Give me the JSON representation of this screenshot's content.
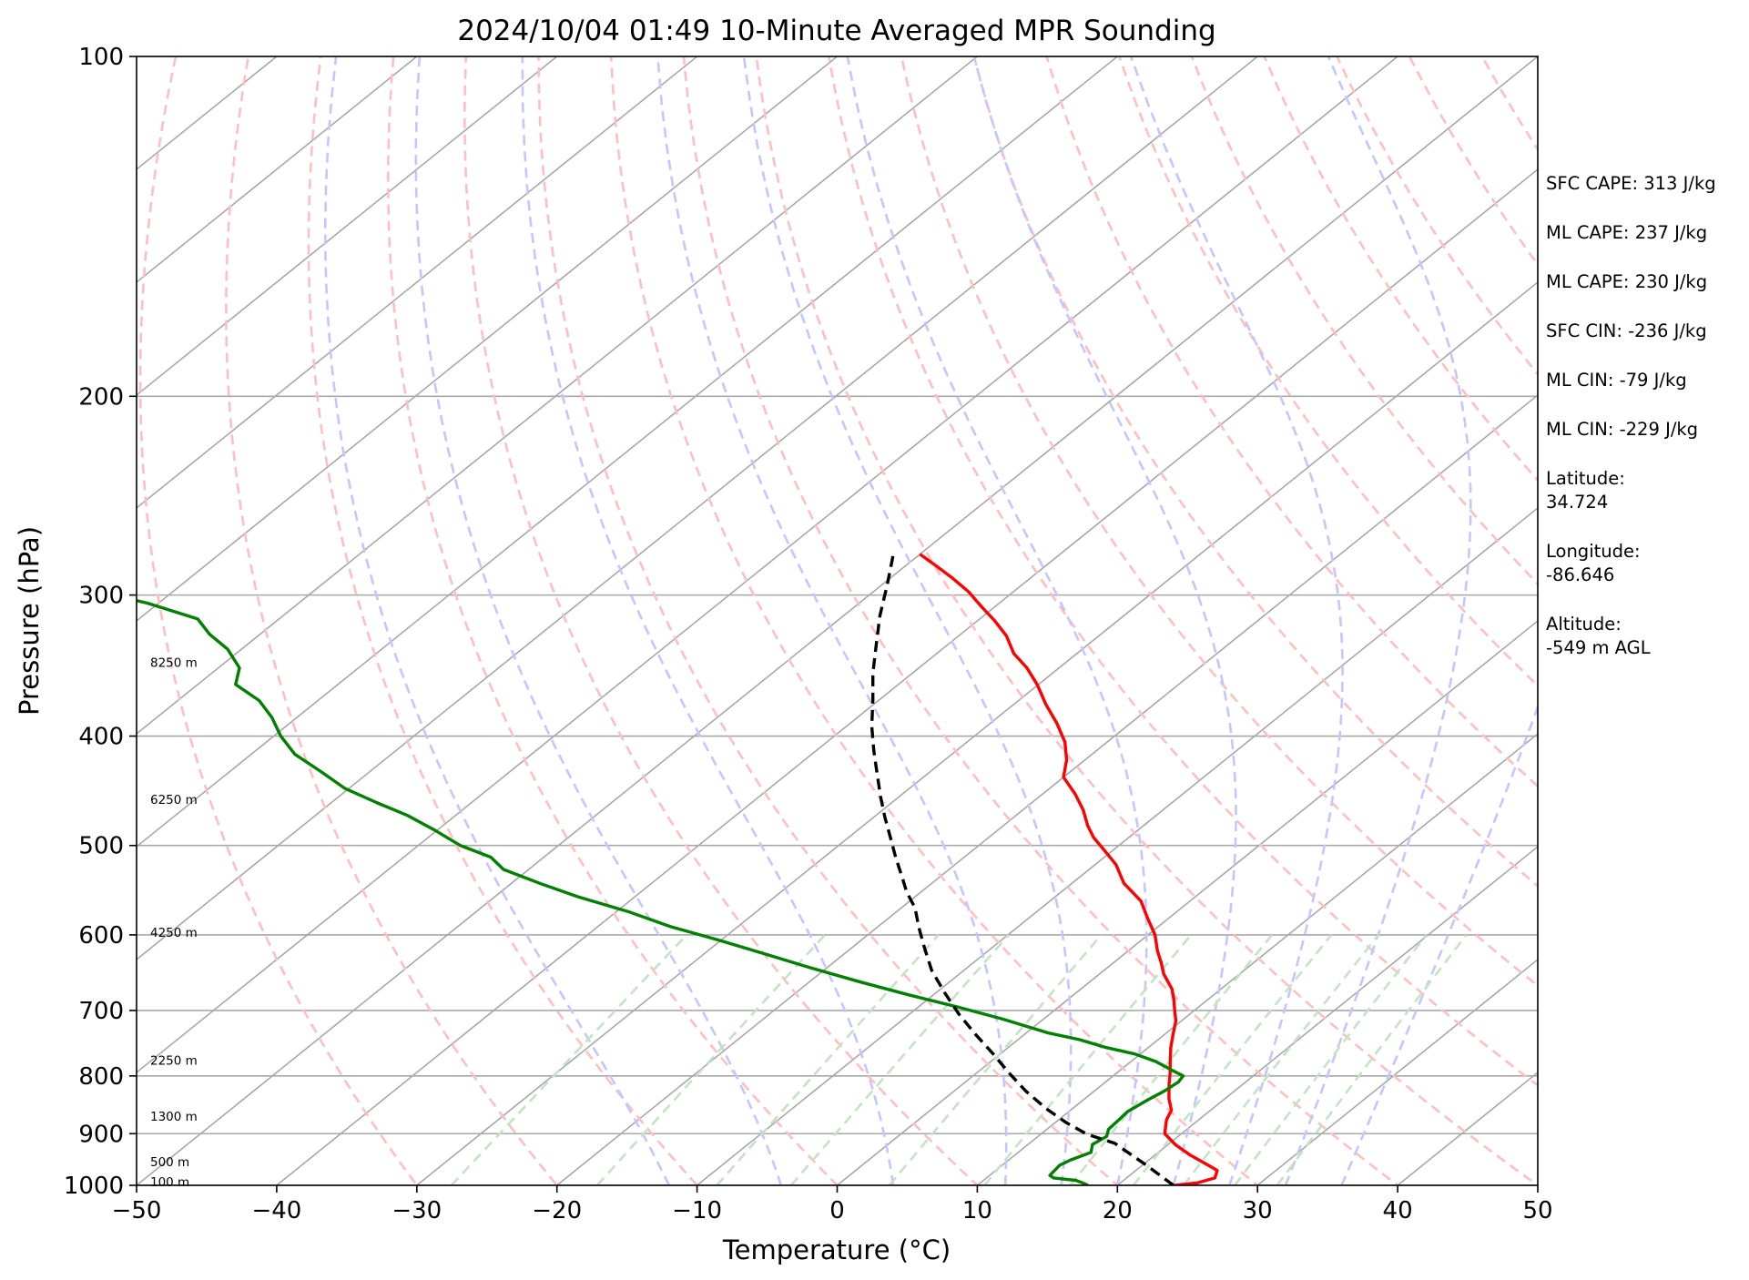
{
  "chart_data": {
    "type": "line",
    "title": "2024/10/04 01:49 10-Minute Averaged MPR Sounding",
    "xlabel": "Temperature (°C)",
    "ylabel": "Pressure (hPa)",
    "xlim": [
      -50,
      50
    ],
    "ylim": [
      1000,
      100
    ],
    "y_scale": "log",
    "x_ticks": [
      "−50",
      "−40",
      "−30",
      "−20",
      "−10",
      "0",
      "10",
      "20",
      "30",
      "40",
      "50"
    ],
    "y_ticks": [
      {
        "value": 100,
        "label": "100"
      },
      {
        "value": 200,
        "label": "200"
      },
      {
        "value": 300,
        "label": "300"
      },
      {
        "value": 400,
        "label": "400"
      },
      {
        "value": 500,
        "label": "500"
      },
      {
        "value": 600,
        "label": "600"
      },
      {
        "value": 700,
        "label": "700"
      },
      {
        "value": 800,
        "label": "800"
      },
      {
        "value": 900,
        "label": "900"
      },
      {
        "value": 1000,
        "label": "1000"
      }
    ],
    "grid": true,
    "skew": true,
    "background_lines": {
      "isotherms": "gray solid",
      "dry_adiabats": "red dashed",
      "moist_adiabats": "blue dashed",
      "mixing_ratio": "green dashed"
    },
    "colors": {
      "temperature": "#ff0000",
      "dewpoint": "#008000",
      "parcel": "#000000",
      "isotherm": "#a8a8a8",
      "dry_adiabat": "#ffbfbf",
      "moist_adiabat": "#c5c5ff",
      "mixing_ratio": "#c3e4c3"
    },
    "height_labels": [
      {
        "label": "100 m",
        "p": 993
      },
      {
        "label": "500 m",
        "p": 953
      },
      {
        "label": "1300 m",
        "p": 868
      },
      {
        "label": "2250 m",
        "p": 775
      },
      {
        "label": "4250 m",
        "p": 597
      },
      {
        "label": "6250 m",
        "p": 455
      },
      {
        "label": "8250 m",
        "p": 344
      }
    ],
    "series": [
      {
        "key": "temperature",
        "style": "solid",
        "points": [
          [
            24.1,
            1000
          ],
          [
            25.5,
            995
          ],
          [
            26.3,
            985
          ],
          [
            25.8,
            970
          ],
          [
            24.5,
            958
          ],
          [
            22.5,
            940
          ],
          [
            20.5,
            920
          ],
          [
            18.8,
            900
          ],
          [
            17.7,
            875
          ],
          [
            17.2,
            858
          ],
          [
            16.0,
            838
          ],
          [
            14.8,
            815
          ],
          [
            13.8,
            795
          ],
          [
            12.7,
            775
          ],
          [
            11.6,
            755
          ],
          [
            10.6,
            735
          ],
          [
            9.6,
            715
          ],
          [
            8.6,
            700
          ],
          [
            7.6,
            685
          ],
          [
            6.5,
            670
          ],
          [
            4.6,
            650
          ],
          [
            3.4,
            635
          ],
          [
            2.1,
            620
          ],
          [
            0.5,
            600
          ],
          [
            -1.5,
            580
          ],
          [
            -3.5,
            560
          ],
          [
            -6.3,
            540
          ],
          [
            -8.5,
            520
          ],
          [
            -10.6,
            505
          ],
          [
            -12.5,
            492
          ],
          [
            -14.0,
            480
          ],
          [
            -15.7,
            465
          ],
          [
            -17.7,
            450
          ],
          [
            -20.0,
            435
          ],
          [
            -21.3,
            420
          ],
          [
            -23.0,
            405
          ],
          [
            -25.2,
            390
          ],
          [
            -27.7,
            375
          ],
          [
            -30.1,
            360
          ],
          [
            -32.3,
            348
          ],
          [
            -34.5,
            338
          ],
          [
            -36.6,
            326
          ],
          [
            -38.8,
            316
          ],
          [
            -41.0,
            307
          ],
          [
            -43.2,
            298
          ],
          [
            -45.5,
            290
          ],
          [
            -47.7,
            283
          ],
          [
            -50.0,
            276
          ]
        ]
      },
      {
        "key": "dewpoint",
        "style": "solid",
        "points": [
          [
            17.9,
            1000
          ],
          [
            17.3,
            995
          ],
          [
            16.6,
            990
          ],
          [
            14.8,
            985
          ],
          [
            14.3,
            980
          ],
          [
            14.1,
            960
          ],
          [
            14.4,
            950
          ],
          [
            15.2,
            935
          ],
          [
            14.6,
            920
          ],
          [
            14.9,
            905
          ],
          [
            14.4,
            892
          ],
          [
            14.3,
            875
          ],
          [
            14.2,
            860
          ],
          [
            14.6,
            840
          ],
          [
            15.0,
            825
          ],
          [
            15.2,
            810
          ],
          [
            15.0,
            800
          ],
          [
            13.6,
            790
          ],
          [
            11.8,
            777
          ],
          [
            9.6,
            765
          ],
          [
            7.0,
            755
          ],
          [
            4.4,
            743
          ],
          [
            1.6,
            733
          ],
          [
            -3.0,
            712
          ],
          [
            -7.2,
            695
          ],
          [
            -11.8,
            678
          ],
          [
            -16.5,
            660
          ],
          [
            -21.1,
            642
          ],
          [
            -25.6,
            624
          ],
          [
            -30.3,
            606
          ],
          [
            -34.8,
            590
          ],
          [
            -39.2,
            572
          ],
          [
            -44.1,
            555
          ],
          [
            -48.0,
            540
          ],
          [
            -51.8,
            525
          ],
          [
            -53.8,
            512
          ],
          [
            -57.0,
            500
          ],
          [
            -60.1,
            485
          ],
          [
            -63.5,
            470
          ],
          [
            -66.8,
            458
          ],
          [
            -70.3,
            445
          ],
          [
            -73.5,
            430
          ],
          [
            -76.9,
            415
          ],
          [
            -79.5,
            400
          ],
          [
            -81.8,
            385
          ],
          [
            -84.2,
            372
          ],
          [
            -87.3,
            360
          ],
          [
            -88.5,
            348
          ],
          [
            -91.0,
            335
          ],
          [
            -93.6,
            325
          ],
          [
            -95.8,
            315
          ],
          [
            -100.8,
            305
          ],
          [
            -106.0,
            297
          ],
          [
            -108.5,
            290
          ],
          [
            -111.8,
            283
          ],
          [
            -116.3,
            278
          ],
          [
            -118.9,
            272
          ],
          [
            -121.2,
            266
          ]
        ]
      },
      {
        "key": "parcel",
        "style": "dashed",
        "points": [
          [
            24.0,
            1000
          ],
          [
            20.3,
            960
          ],
          [
            16.1,
            918
          ],
          [
            13.3,
            901
          ],
          [
            10.8,
            880
          ],
          [
            8.1,
            855
          ],
          [
            5.1,
            825
          ],
          [
            2.3,
            795
          ],
          [
            -0.5,
            765
          ],
          [
            -3.5,
            735
          ],
          [
            -6.5,
            705
          ],
          [
            -9.4,
            675
          ],
          [
            -12.3,
            645
          ],
          [
            -14.9,
            615
          ],
          [
            -17.1,
            590
          ],
          [
            -19.0,
            568
          ],
          [
            -21.0,
            550
          ],
          [
            -22.8,
            532
          ],
          [
            -24.9,
            512
          ],
          [
            -27.0,
            492
          ],
          [
            -29.2,
            472
          ],
          [
            -31.4,
            452
          ],
          [
            -33.6,
            432
          ],
          [
            -35.9,
            412
          ],
          [
            -38.2,
            392
          ],
          [
            -40.4,
            372
          ],
          [
            -42.8,
            352
          ],
          [
            -45.1,
            332
          ],
          [
            -47.4,
            313
          ],
          [
            -49.6,
            294
          ],
          [
            -51.9,
            276
          ]
        ]
      }
    ]
  },
  "annotations": [
    {
      "text": "SFC CAPE: 313 J/kg"
    },
    {
      "text": "ML CAPE: 237 J/kg"
    },
    {
      "text": "ML CAPE: 230 J/kg"
    },
    {
      "text": "SFC CIN: -236 J/kg"
    },
    {
      "text": "ML CIN: -79 J/kg"
    },
    {
      "text": "ML CIN: -229 J/kg"
    },
    {
      "text": "Latitude:",
      "text2": "34.724"
    },
    {
      "text": "Longitude:",
      "text2": "-86.646"
    },
    {
      "text": "Altitude:",
      "text2": "-549 m AGL"
    }
  ]
}
